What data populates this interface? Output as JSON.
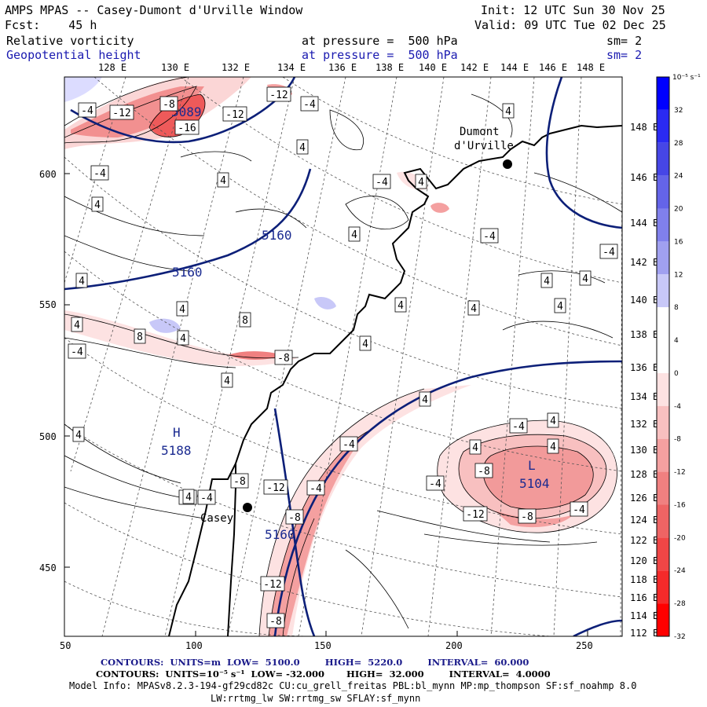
{
  "header": {
    "title": "AMPS MPAS -- Casey-Dumont d'Urville Window",
    "init": "Init: 12 UTC Sun 30 Nov 25",
    "fcst": "Fcst:    45 h",
    "valid": "Valid: 09 UTC Tue 02 Dec 25",
    "field1": "Relative vorticity",
    "field1_level": "at pressure =  500 hPa",
    "field1_sm": "sm= 2",
    "field2": "Geopotential height",
    "field2_level": "at pressure =  500 hPa",
    "field2_sm": "sm= 2"
  },
  "lon_labels_top": [
    "128 E",
    "130 E",
    "132 E",
    "134 E",
    "136 E",
    "138 E",
    "140 E",
    "142 E",
    "144 E",
    "146 E",
    "148 E"
  ],
  "lat_labels_right": [
    "148 E",
    "146 E",
    "144 E",
    "142 E",
    "140 E",
    "138 E",
    "136 E",
    "134 E",
    "132 E",
    "130 E",
    "128 E",
    "126 E",
    "124 E",
    "122 E",
    "120 E",
    "118 E",
    "116 E",
    "114 E",
    "112 E"
  ],
  "axis": {
    "x_ticks": [
      "50",
      "100",
      "150",
      "200",
      "250"
    ],
    "y_ticks": [
      "600",
      "550",
      "500",
      "450"
    ]
  },
  "colorbar": {
    "unit": "10⁻⁵ s⁻¹",
    "labels": [
      "32",
      "28",
      "24",
      "20",
      "16",
      "12",
      "8",
      "4",
      "0",
      "-4",
      "-8",
      "-12",
      "-16",
      "-20",
      "-24",
      "-28",
      "-32"
    ],
    "colors": [
      "#0000ff",
      "#2a2af2",
      "#4646e6",
      "#6464e8",
      "#8080ec",
      "#a0a0f0",
      "#c8c8f8",
      "#ffffff",
      "#ffffff",
      "#fde2e2",
      "#f8c0c0",
      "#f4a0a0",
      "#f08080",
      "#ee6464",
      "#f04646",
      "#f42a2a",
      "#ff0000"
    ]
  },
  "places": {
    "dumont": "Dumont\nd'Urville",
    "casey": "Casey"
  },
  "height_labels": [
    {
      "text": "5160"
    },
    {
      "text": "5160"
    },
    {
      "text": "5160"
    },
    {
      "text": "5089"
    },
    {
      "text": "5104"
    },
    {
      "text": "5188"
    }
  ],
  "centers": [
    {
      "text": "H"
    },
    {
      "text": "L"
    }
  ],
  "vort_labels": [
    "-4",
    "-12",
    "-8",
    "-12",
    "-16",
    "-12",
    "-4",
    "4",
    "4",
    "-4",
    "4",
    "4",
    "-4",
    "4",
    "4",
    "-4",
    "4",
    "4",
    "4",
    "-4",
    "4",
    "4",
    "4",
    "4",
    "4",
    "4",
    "-4",
    "8",
    "8",
    "4",
    "4",
    "-8",
    "4",
    "4",
    "-4",
    "-4",
    "4",
    "4",
    "-8",
    "-4",
    "-8",
    "-12",
    "-4",
    "-8",
    "-4",
    "-12",
    "-8",
    "-4",
    "-8",
    "-12",
    "-8",
    "4",
    "4",
    "-4",
    "4"
  ],
  "footer": {
    "line1_a": "CONTOURS:  UNITS=m  LOW=  5100.0        HIGH=  5220.0        INTERVAL=  60.000",
    "line2": "CONTOURS:  UNITS=10⁻⁵ s⁻¹  LOW= -32.000       HIGH=  32.000        INTERVAL=  4.0000",
    "line3": "Model Info: MPASv8.2.3-194-gf29cd82c CU:cu_grell_freitas PBL:bl_mynn MP:mp_thompson SF:sf_noahmp 8.0",
    "line4": "LW:rrtmg_lw SW:rrtmg_sw SFLAY:sf_mynn"
  }
}
